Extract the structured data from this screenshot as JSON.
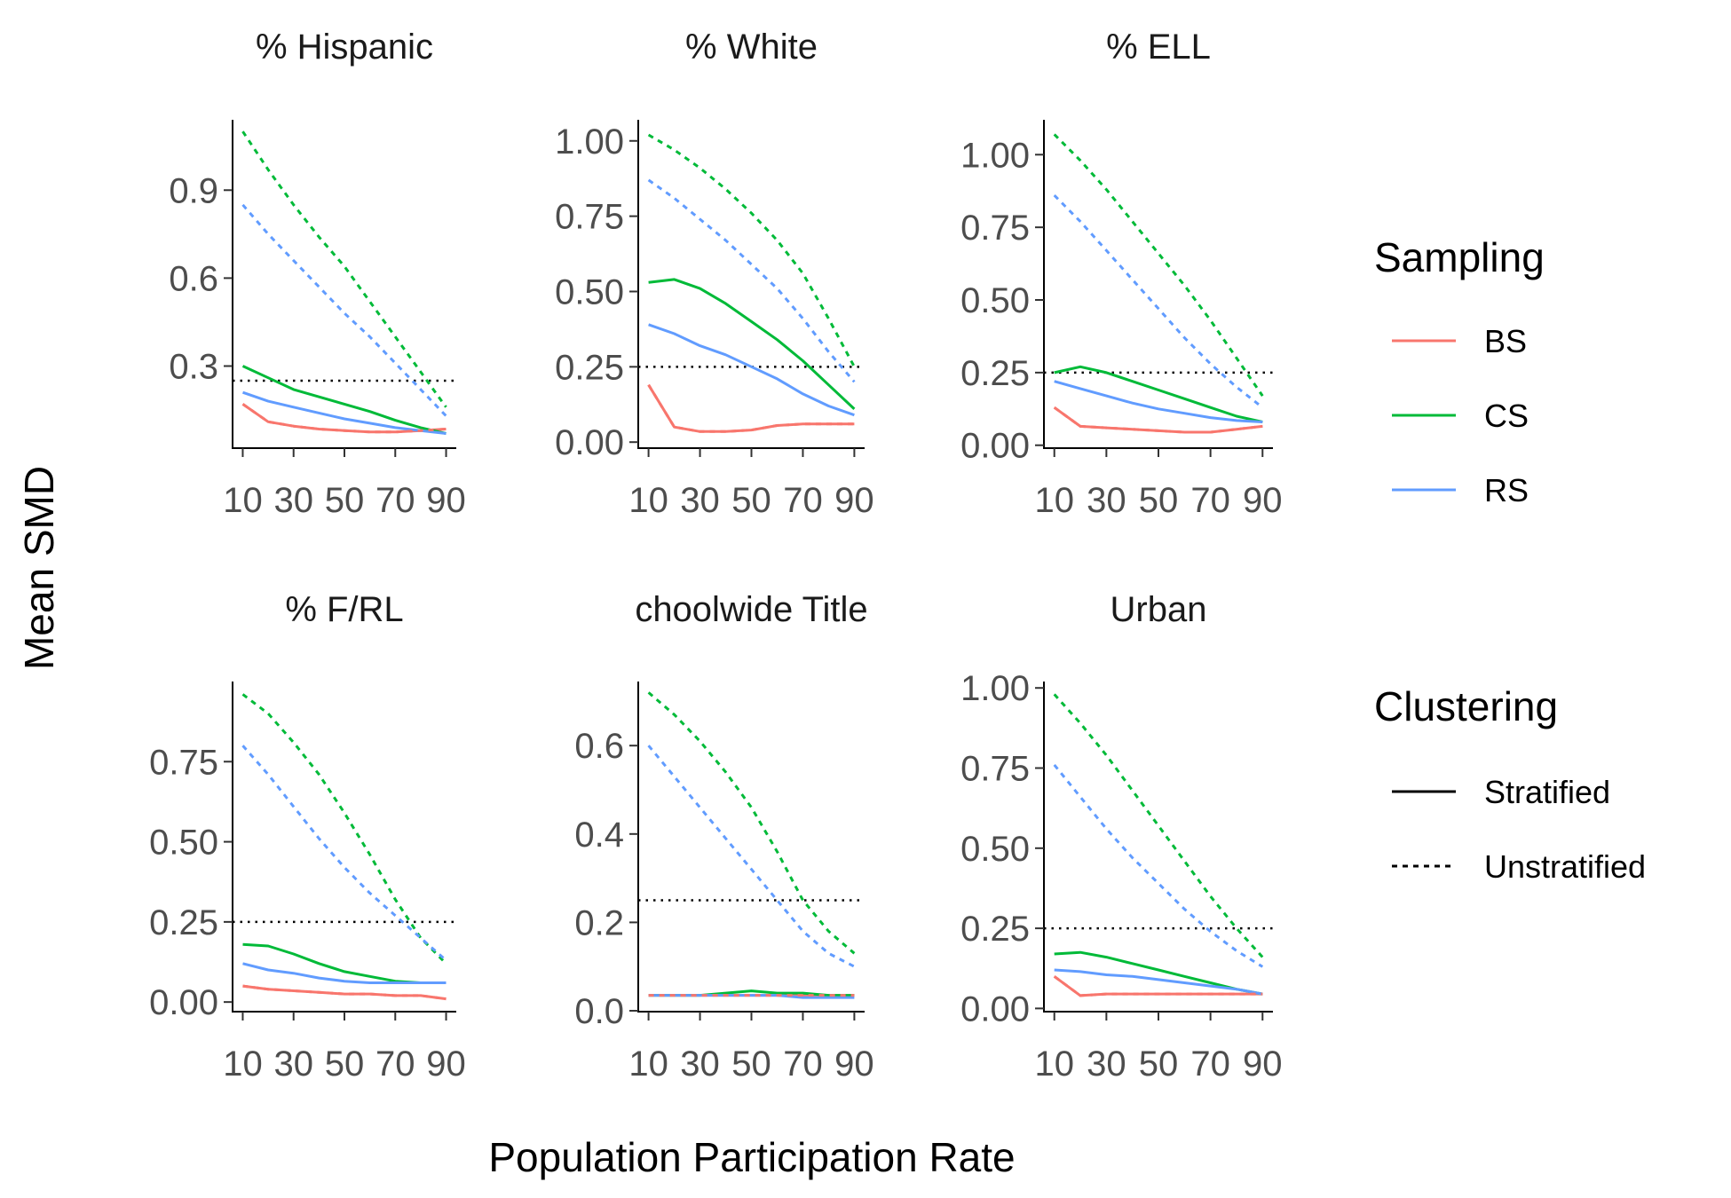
{
  "figure": {
    "xlabel": "Population Participation Rate",
    "ylabel": "Mean SMD"
  },
  "legend": {
    "sampling": {
      "title": "Sampling",
      "items": [
        {
          "label": "BS",
          "color": "#F8766D"
        },
        {
          "label": "CS",
          "color": "#00BA38"
        },
        {
          "label": "RS",
          "color": "#619CFF"
        }
      ]
    },
    "clustering": {
      "title": "Clustering",
      "items": [
        {
          "label": "Stratified",
          "linetype": "solid"
        },
        {
          "label": "Unstratified",
          "linetype": "dotted"
        }
      ]
    }
  },
  "chart_data": [
    {
      "type": "line",
      "title": "% Hispanic",
      "x": [
        10,
        20,
        30,
        40,
        50,
        60,
        70,
        80,
        90
      ],
      "xticks": [
        10,
        30,
        50,
        70,
        90
      ],
      "xtick_labels": [
        "10",
        "30",
        "50",
        "70",
        "90"
      ],
      "xlim": [
        6,
        94
      ],
      "ylim": [
        0.02,
        1.14
      ],
      "yticks": [
        0.3,
        0.6,
        0.9
      ],
      "ytick_labels": [
        "0.3",
        "0.6",
        "0.9"
      ],
      "reference_line": 0.25,
      "series": [
        {
          "sampling": "BS",
          "clustering": "Stratified",
          "values": [
            0.17,
            0.11,
            0.095,
            0.085,
            0.08,
            0.075,
            0.075,
            0.08,
            0.085
          ]
        },
        {
          "sampling": "CS",
          "clustering": "Stratified",
          "values": [
            0.3,
            0.26,
            0.22,
            0.195,
            0.17,
            0.145,
            0.115,
            0.09,
            0.07
          ]
        },
        {
          "sampling": "RS",
          "clustering": "Stratified",
          "values": [
            0.21,
            0.18,
            0.16,
            0.14,
            0.12,
            0.105,
            0.09,
            0.08,
            0.07
          ]
        },
        {
          "sampling": "BS",
          "clustering": "Unstratified",
          "values": [
            0.17,
            0.11,
            0.095,
            0.085,
            0.08,
            0.075,
            0.075,
            0.08,
            0.085
          ]
        },
        {
          "sampling": "CS",
          "clustering": "Unstratified",
          "values": [
            1.1,
            0.97,
            0.85,
            0.74,
            0.64,
            0.52,
            0.4,
            0.28,
            0.16
          ]
        },
        {
          "sampling": "RS",
          "clustering": "Unstratified",
          "values": [
            0.85,
            0.75,
            0.66,
            0.57,
            0.48,
            0.4,
            0.31,
            0.22,
            0.13
          ]
        }
      ]
    },
    {
      "type": "line",
      "title": "% White",
      "x": [
        10,
        20,
        30,
        40,
        50,
        60,
        70,
        80,
        90
      ],
      "xticks": [
        10,
        30,
        50,
        70,
        90
      ],
      "xtick_labels": [
        "10",
        "30",
        "50",
        "70",
        "90"
      ],
      "xlim": [
        6,
        94
      ],
      "ylim": [
        -0.02,
        1.07
      ],
      "yticks": [
        0.0,
        0.25,
        0.5,
        0.75,
        1.0
      ],
      "ytick_labels": [
        "0.00",
        "0.25",
        "0.50",
        "0.75",
        "1.00"
      ],
      "reference_line": 0.25,
      "series": [
        {
          "sampling": "BS",
          "clustering": "Stratified",
          "values": [
            0.19,
            0.05,
            0.035,
            0.035,
            0.04,
            0.055,
            0.06,
            0.06,
            0.06
          ]
        },
        {
          "sampling": "CS",
          "clustering": "Stratified",
          "values": [
            0.53,
            0.54,
            0.51,
            0.46,
            0.4,
            0.34,
            0.27,
            0.19,
            0.11
          ]
        },
        {
          "sampling": "RS",
          "clustering": "Stratified",
          "values": [
            0.39,
            0.36,
            0.32,
            0.29,
            0.25,
            0.21,
            0.16,
            0.12,
            0.09
          ]
        },
        {
          "sampling": "BS",
          "clustering": "Unstratified",
          "values": [
            0.19,
            0.05,
            0.035,
            0.035,
            0.04,
            0.055,
            0.06,
            0.06,
            0.06
          ]
        },
        {
          "sampling": "CS",
          "clustering": "Unstratified",
          "values": [
            1.02,
            0.97,
            0.91,
            0.84,
            0.76,
            0.67,
            0.56,
            0.41,
            0.25
          ]
        },
        {
          "sampling": "RS",
          "clustering": "Unstratified",
          "values": [
            0.87,
            0.81,
            0.74,
            0.67,
            0.59,
            0.51,
            0.41,
            0.3,
            0.2
          ]
        }
      ]
    },
    {
      "type": "line",
      "title": "% ELL",
      "x": [
        10,
        20,
        30,
        40,
        50,
        60,
        70,
        80,
        90
      ],
      "xticks": [
        10,
        30,
        50,
        70,
        90
      ],
      "xtick_labels": [
        "10",
        "30",
        "50",
        "70",
        "90"
      ],
      "xlim": [
        6,
        94
      ],
      "ylim": [
        -0.01,
        1.12
      ],
      "yticks": [
        0.0,
        0.25,
        0.5,
        0.75,
        1.0
      ],
      "ytick_labels": [
        "0.00",
        "0.25",
        "0.50",
        "0.75",
        "1.00"
      ],
      "reference_line": 0.25,
      "series": [
        {
          "sampling": "BS",
          "clustering": "Stratified",
          "values": [
            0.13,
            0.065,
            0.06,
            0.055,
            0.05,
            0.045,
            0.045,
            0.055,
            0.065
          ]
        },
        {
          "sampling": "CS",
          "clustering": "Stratified",
          "values": [
            0.25,
            0.27,
            0.25,
            0.22,
            0.19,
            0.16,
            0.13,
            0.1,
            0.08
          ]
        },
        {
          "sampling": "RS",
          "clustering": "Stratified",
          "values": [
            0.22,
            0.195,
            0.17,
            0.145,
            0.125,
            0.11,
            0.095,
            0.085,
            0.08
          ]
        },
        {
          "sampling": "BS",
          "clustering": "Unstratified",
          "values": [
            0.13,
            0.065,
            0.06,
            0.055,
            0.05,
            0.045,
            0.045,
            0.055,
            0.065
          ]
        },
        {
          "sampling": "CS",
          "clustering": "Unstratified",
          "values": [
            1.07,
            0.98,
            0.88,
            0.77,
            0.66,
            0.55,
            0.43,
            0.3,
            0.17
          ]
        },
        {
          "sampling": "RS",
          "clustering": "Unstratified",
          "values": [
            0.86,
            0.77,
            0.67,
            0.57,
            0.47,
            0.37,
            0.28,
            0.2,
            0.13
          ]
        }
      ]
    },
    {
      "type": "line",
      "title": "% F/RL",
      "x": [
        10,
        20,
        30,
        40,
        50,
        60,
        70,
        80,
        90
      ],
      "xticks": [
        10,
        30,
        50,
        70,
        90
      ],
      "xtick_labels": [
        "10",
        "30",
        "50",
        "70",
        "90"
      ],
      "xlim": [
        6,
        94
      ],
      "ylim": [
        -0.03,
        1.0
      ],
      "yticks": [
        0.0,
        0.25,
        0.5,
        0.75
      ],
      "ytick_labels": [
        "0.00",
        "0.25",
        "0.50",
        "0.75"
      ],
      "reference_line": 0.25,
      "series": [
        {
          "sampling": "BS",
          "clustering": "Stratified",
          "values": [
            0.05,
            0.04,
            0.035,
            0.03,
            0.025,
            0.025,
            0.02,
            0.02,
            0.01
          ]
        },
        {
          "sampling": "CS",
          "clustering": "Stratified",
          "values": [
            0.18,
            0.175,
            0.15,
            0.12,
            0.095,
            0.08,
            0.065,
            0.06,
            0.06
          ]
        },
        {
          "sampling": "RS",
          "clustering": "Stratified",
          "values": [
            0.12,
            0.1,
            0.09,
            0.075,
            0.065,
            0.06,
            0.06,
            0.06,
            0.06
          ]
        },
        {
          "sampling": "BS",
          "clustering": "Unstratified",
          "values": [
            0.05,
            0.04,
            0.035,
            0.03,
            0.025,
            0.025,
            0.02,
            0.02,
            0.01
          ]
        },
        {
          "sampling": "CS",
          "clustering": "Unstratified",
          "values": [
            0.96,
            0.9,
            0.81,
            0.71,
            0.59,
            0.46,
            0.32,
            0.2,
            0.12
          ]
        },
        {
          "sampling": "RS",
          "clustering": "Unstratified",
          "values": [
            0.8,
            0.71,
            0.61,
            0.51,
            0.42,
            0.34,
            0.27,
            0.2,
            0.13
          ]
        }
      ]
    },
    {
      "type": "line",
      "title": "choolwide Title",
      "x": [
        10,
        20,
        30,
        40,
        50,
        60,
        70,
        80,
        90
      ],
      "xticks": [
        10,
        30,
        50,
        70,
        90
      ],
      "xtick_labels": [
        "10",
        "30",
        "50",
        "70",
        "90"
      ],
      "xlim": [
        6,
        94
      ],
      "ylim": [
        -0.002,
        0.745
      ],
      "yticks": [
        0.0,
        0.2,
        0.4,
        0.6
      ],
      "ytick_labels": [
        "0.0",
        "0.2",
        "0.4",
        "0.6"
      ],
      "reference_line": 0.25,
      "series": [
        {
          "sampling": "BS",
          "clustering": "Stratified",
          "values": [
            0.035,
            0.035,
            0.035,
            0.035,
            0.035,
            0.035,
            0.035,
            0.035,
            0.035
          ]
        },
        {
          "sampling": "CS",
          "clustering": "Stratified",
          "values": [
            0.035,
            0.035,
            0.035,
            0.04,
            0.045,
            0.04,
            0.04,
            0.035,
            0.035
          ]
        },
        {
          "sampling": "RS",
          "clustering": "Stratified",
          "values": [
            0.035,
            0.035,
            0.035,
            0.035,
            0.035,
            0.035,
            0.03,
            0.03,
            0.03
          ]
        },
        {
          "sampling": "BS",
          "clustering": "Unstratified",
          "values": [
            0.035,
            0.035,
            0.035,
            0.035,
            0.035,
            0.035,
            0.035,
            0.035,
            0.035
          ]
        },
        {
          "sampling": "CS",
          "clustering": "Unstratified",
          "values": [
            0.72,
            0.67,
            0.61,
            0.54,
            0.46,
            0.36,
            0.25,
            0.18,
            0.13
          ]
        },
        {
          "sampling": "RS",
          "clustering": "Unstratified",
          "values": [
            0.6,
            0.53,
            0.46,
            0.39,
            0.32,
            0.25,
            0.18,
            0.13,
            0.1
          ]
        }
      ]
    },
    {
      "type": "line",
      "title": "Urban",
      "x": [
        10,
        20,
        30,
        40,
        50,
        60,
        70,
        80,
        90
      ],
      "xticks": [
        10,
        30,
        50,
        70,
        90
      ],
      "xtick_labels": [
        "10",
        "30",
        "50",
        "70",
        "90"
      ],
      "xlim": [
        6,
        94
      ],
      "ylim": [
        -0.01,
        1.02
      ],
      "yticks": [
        0.0,
        0.25,
        0.5,
        0.75,
        1.0
      ],
      "ytick_labels": [
        "0.00",
        "0.25",
        "0.50",
        "0.75",
        "1.00"
      ],
      "reference_line": 0.25,
      "series": [
        {
          "sampling": "BS",
          "clustering": "Stratified",
          "values": [
            0.1,
            0.04,
            0.045,
            0.045,
            0.045,
            0.045,
            0.045,
            0.045,
            0.045
          ]
        },
        {
          "sampling": "CS",
          "clustering": "Stratified",
          "values": [
            0.17,
            0.175,
            0.16,
            0.14,
            0.12,
            0.1,
            0.08,
            0.06,
            0.045
          ]
        },
        {
          "sampling": "RS",
          "clustering": "Stratified",
          "values": [
            0.12,
            0.115,
            0.105,
            0.1,
            0.09,
            0.08,
            0.07,
            0.06,
            0.045
          ]
        },
        {
          "sampling": "BS",
          "clustering": "Unstratified",
          "values": [
            0.1,
            0.04,
            0.045,
            0.045,
            0.045,
            0.045,
            0.045,
            0.045,
            0.045
          ]
        },
        {
          "sampling": "CS",
          "clustering": "Unstratified",
          "values": [
            0.98,
            0.89,
            0.79,
            0.68,
            0.57,
            0.46,
            0.35,
            0.25,
            0.16
          ]
        },
        {
          "sampling": "RS",
          "clustering": "Unstratified",
          "values": [
            0.76,
            0.66,
            0.56,
            0.47,
            0.39,
            0.31,
            0.24,
            0.18,
            0.13
          ]
        }
      ]
    }
  ]
}
